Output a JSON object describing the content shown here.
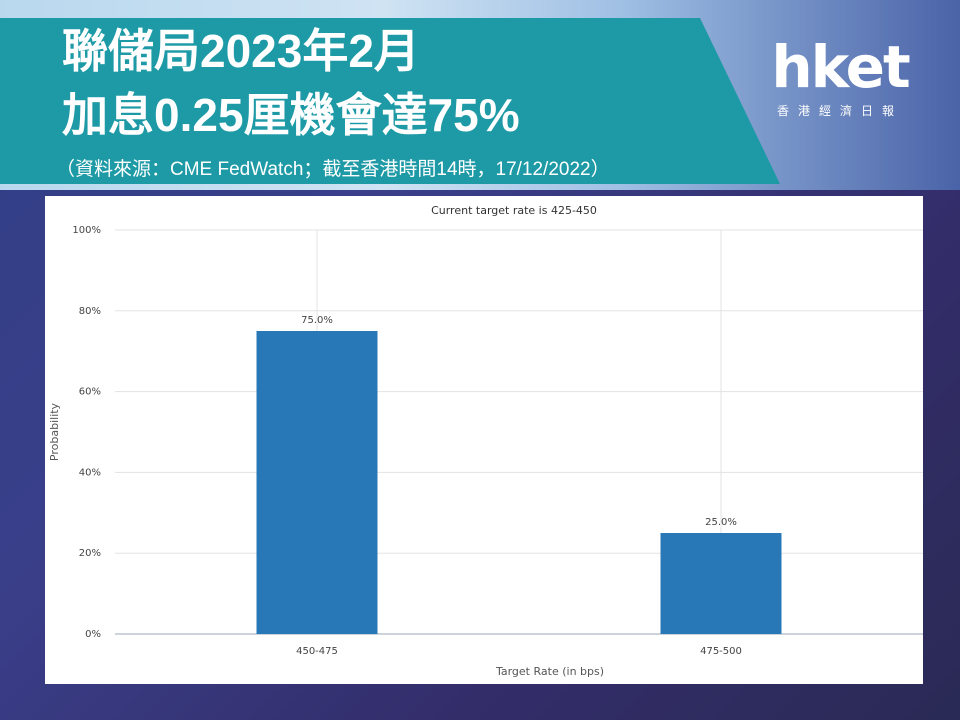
{
  "header": {
    "title_line1": "聯儲局2023年2月",
    "title_line2": "加息0.25厘機會達75%",
    "source": "（資料來源：CME FedWatch；截至香港時間14時，17/12/2022）"
  },
  "logo": {
    "word": "hket",
    "subtitle": "香港經濟日報"
  },
  "colors": {
    "headline_bg": "#1d9aa6",
    "bar": "#2878b8"
  },
  "chart_data": {
    "type": "bar",
    "title": "Current target rate is 425-450",
    "xlabel": "Target Rate (in bps)",
    "ylabel": "Probability",
    "categories": [
      "450-475",
      "475-500"
    ],
    "values": [
      75.0,
      25.0
    ],
    "data_labels": [
      "75.0%",
      "25.0%"
    ],
    "ylim": [
      0,
      100
    ],
    "yticks": [
      0,
      20,
      40,
      60,
      80,
      100
    ],
    "ytick_labels": [
      "0%",
      "20%",
      "40%",
      "60%",
      "80%",
      "100%"
    ],
    "grid": true,
    "legend": "none"
  }
}
